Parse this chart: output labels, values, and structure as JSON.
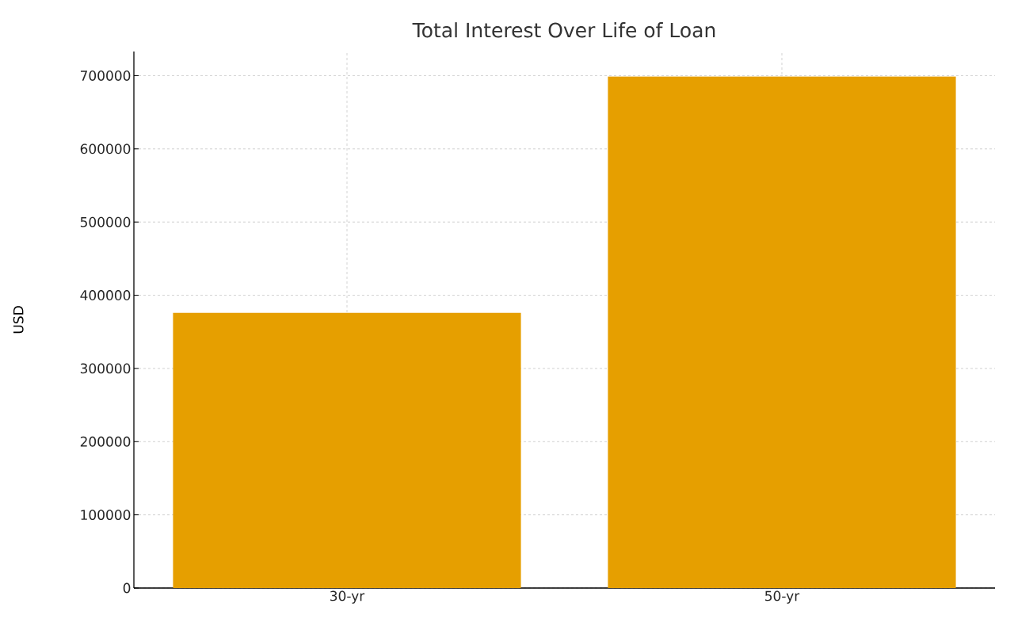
{
  "chart_data": {
    "type": "bar",
    "title": "Total Interest Over Life of Loan",
    "ylabel": "USD",
    "categories": [
      "30-yr",
      "50-yr"
    ],
    "values": [
      376000,
      699000
    ],
    "color": "#e69f00",
    "ylim": [
      0,
      733000
    ],
    "yticks": [
      0,
      100000,
      200000,
      300000,
      400000,
      500000,
      600000,
      700000
    ],
    "grid": true
  }
}
